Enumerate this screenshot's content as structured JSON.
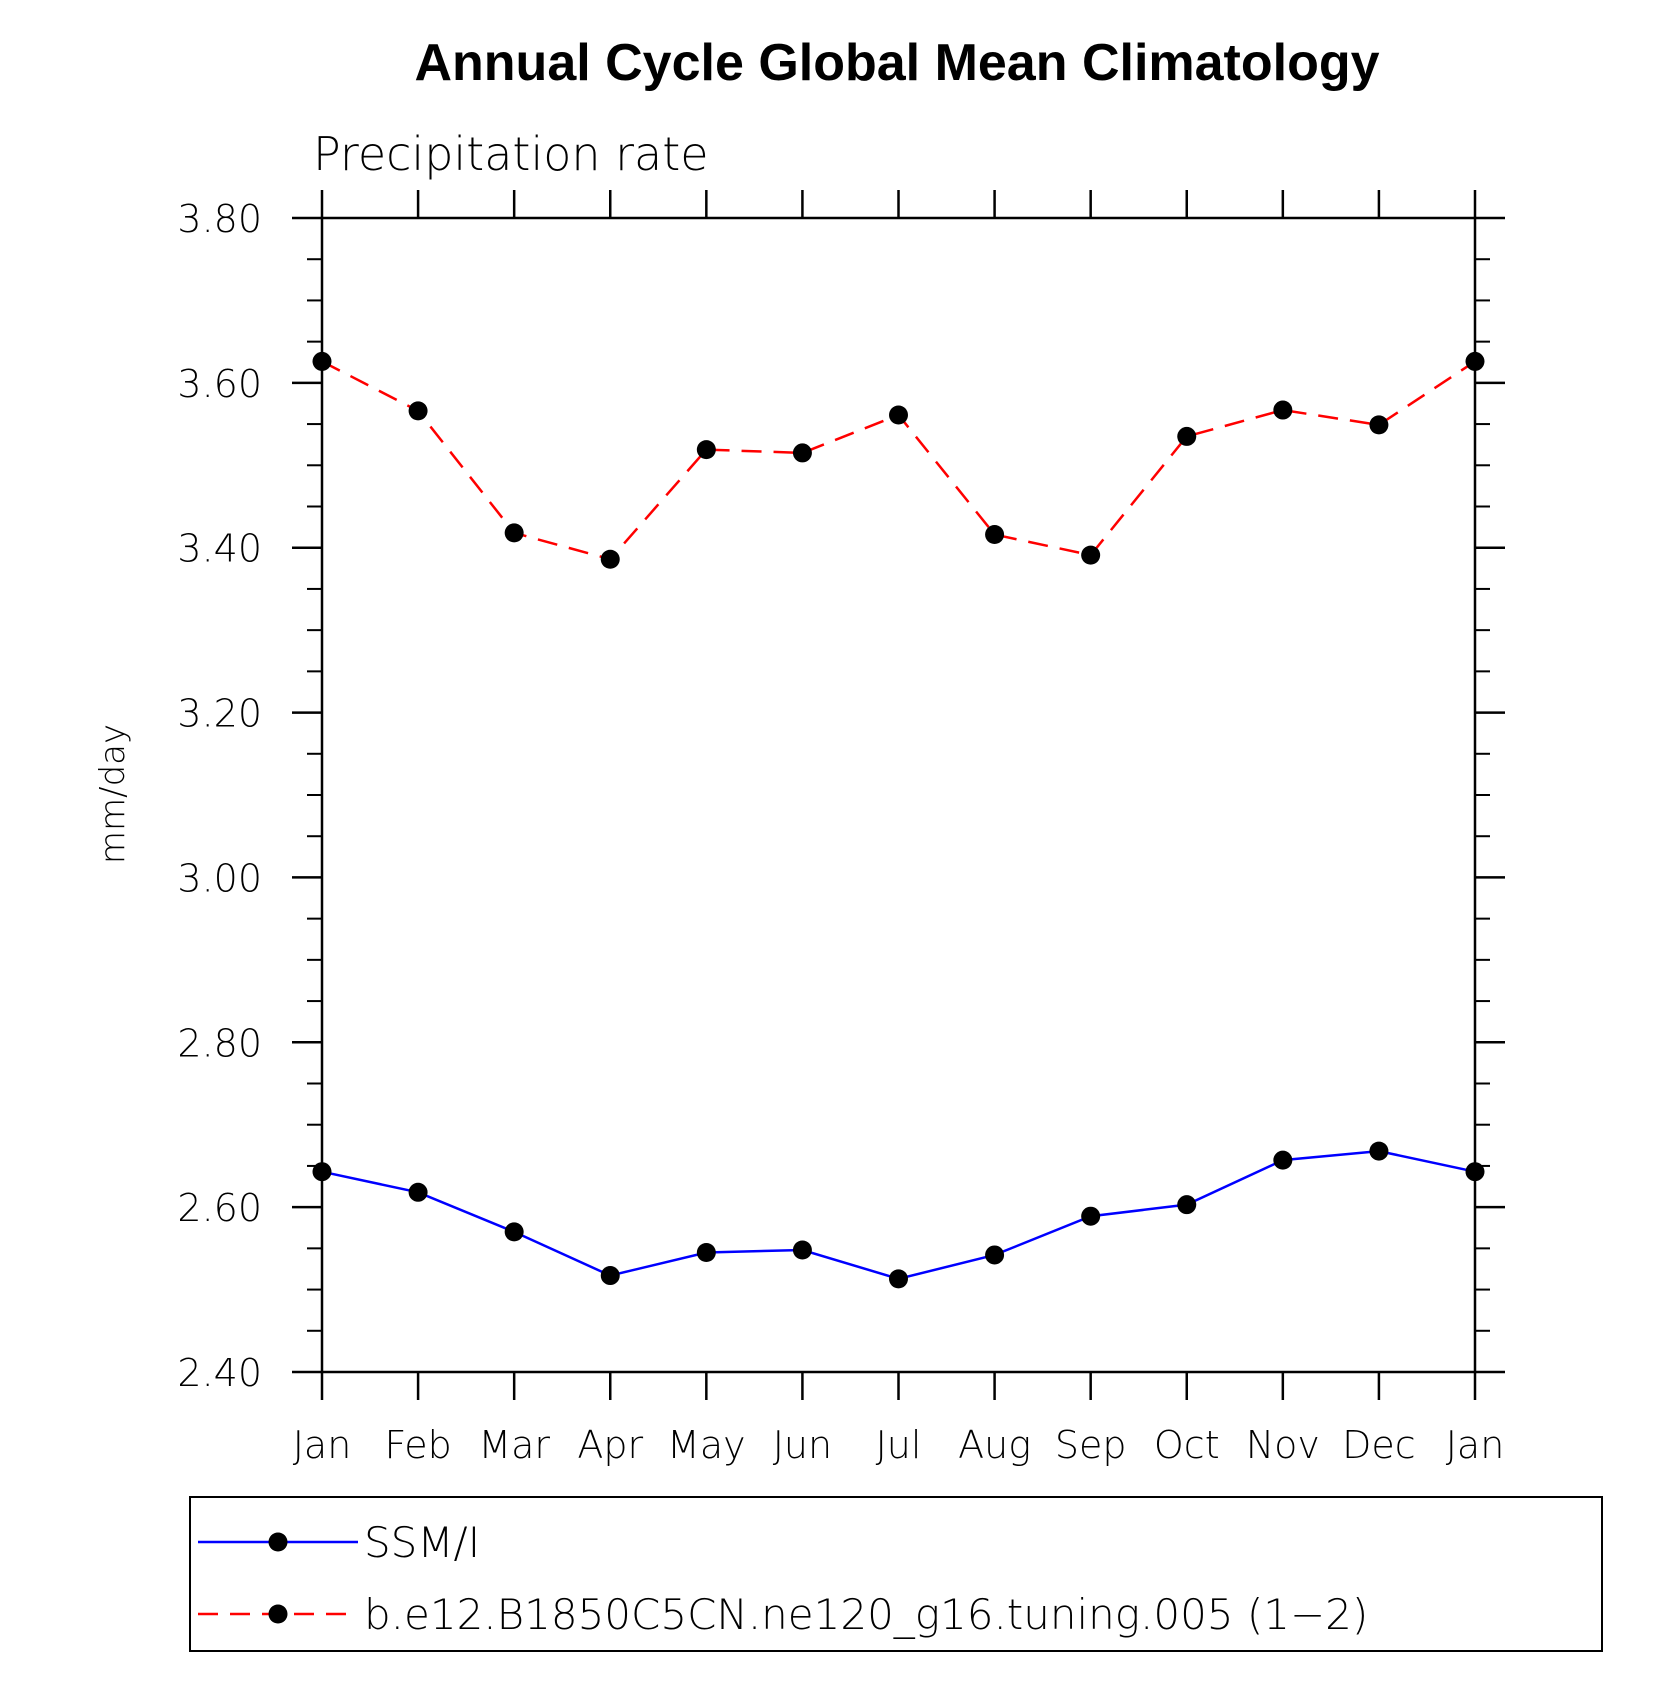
{
  "chart_data": {
    "type": "line",
    "title": "Annual Cycle Global Mean Climatology",
    "subtitle": "Precipitation rate",
    "ylabel": "mm/day",
    "xlabel": "",
    "categories": [
      "Jan",
      "Feb",
      "Mar",
      "Apr",
      "May",
      "Jun",
      "Jul",
      "Aug",
      "Sep",
      "Oct",
      "Nov",
      "Dec",
      "Jan"
    ],
    "ylim": [
      2.4,
      3.8
    ],
    "yticks": [
      "2.40",
      "2.60",
      "2.80",
      "3.00",
      "3.20",
      "3.40",
      "3.60",
      "3.80"
    ],
    "ytick_values": [
      2.4,
      2.6,
      2.8,
      3.0,
      3.2,
      3.4,
      3.6,
      3.8
    ],
    "minor_step": 0.05,
    "legend_position": "bottom",
    "series": [
      {
        "name": "SSM/I",
        "color": "#0000ff",
        "style": "solid",
        "marker": "circle",
        "values": [
          2.643,
          2.618,
          2.57,
          2.517,
          2.545,
          2.548,
          2.513,
          2.542,
          2.589,
          2.603,
          2.657,
          2.668,
          2.643
        ]
      },
      {
        "name": "b.e12.B1850C5CN.ne120_g16.tuning.005 (1−2)",
        "color": "#ff0000",
        "style": "dashed",
        "marker": "circle",
        "values": [
          3.626,
          3.566,
          3.418,
          3.386,
          3.519,
          3.515,
          3.561,
          3.416,
          3.391,
          3.535,
          3.567,
          3.549,
          3.626
        ]
      }
    ]
  }
}
